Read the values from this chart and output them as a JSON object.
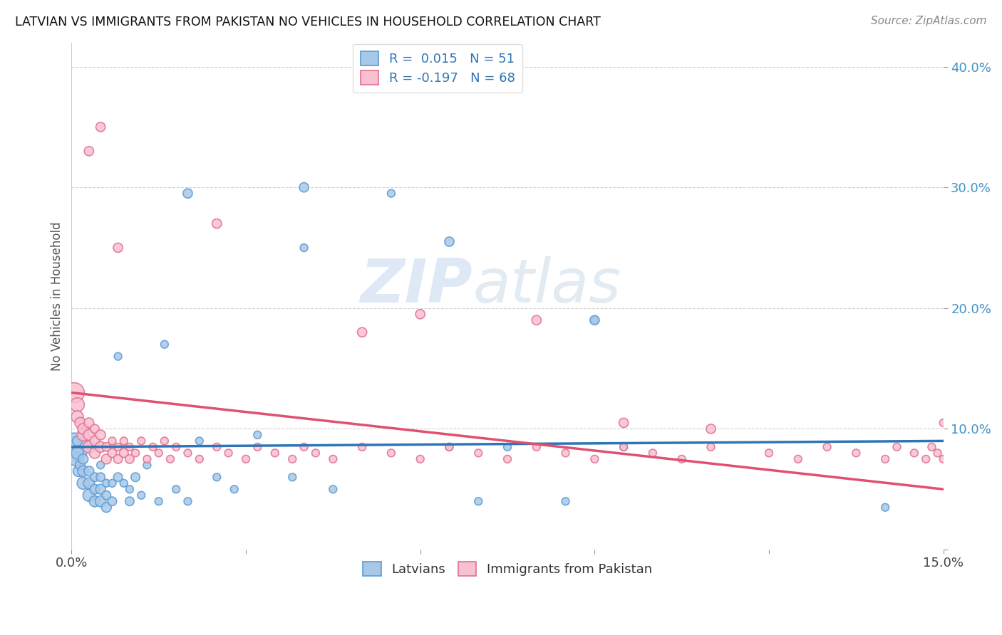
{
  "title": "LATVIAN VS IMMIGRANTS FROM PAKISTAN NO VEHICLES IN HOUSEHOLD CORRELATION CHART",
  "source": "Source: ZipAtlas.com",
  "ylabel": "No Vehicles in Household",
  "xlim": [
    0.0,
    0.15
  ],
  "ylim": [
    0.0,
    0.42
  ],
  "xtick_vals": [
    0.0,
    0.03,
    0.06,
    0.09,
    0.12,
    0.15
  ],
  "xtick_labels": [
    "0.0%",
    "",
    "",
    "",
    "",
    "15.0%"
  ],
  "ytick_vals": [
    0.0,
    0.1,
    0.2,
    0.3,
    0.4
  ],
  "ytick_labels": [
    "",
    "10.0%",
    "20.0%",
    "30.0%",
    "40.0%"
  ],
  "blue_color": "#a8c8e8",
  "blue_edge_color": "#5b9bd5",
  "pink_color": "#f8c0d0",
  "pink_edge_color": "#e07090",
  "blue_line_color": "#2e75b6",
  "pink_line_color": "#e05070",
  "legend_blue_label": "R =  0.015   N = 51",
  "legend_pink_label": "R = -0.197   N = 68",
  "legend_latvians": "Latvians",
  "legend_pakistan": "Immigrants from Pakistan",
  "watermark": "ZIPatlas",
  "R_blue": 0.015,
  "R_pink": -0.197,
  "blue_trend_y0": 0.085,
  "blue_trend_y1": 0.09,
  "pink_trend_y0": 0.13,
  "pink_trend_y1": 0.05,
  "blue_scatter": {
    "x": [
      0.0005,
      0.0008,
      0.001,
      0.001,
      0.0012,
      0.0015,
      0.002,
      0.002,
      0.002,
      0.003,
      0.003,
      0.003,
      0.004,
      0.004,
      0.004,
      0.005,
      0.005,
      0.005,
      0.005,
      0.006,
      0.006,
      0.006,
      0.007,
      0.007,
      0.008,
      0.008,
      0.009,
      0.01,
      0.01,
      0.011,
      0.012,
      0.013,
      0.015,
      0.016,
      0.018,
      0.02,
      0.022,
      0.025,
      0.028,
      0.032,
      0.038,
      0.04,
      0.045,
      0.055,
      0.065,
      0.07,
      0.075,
      0.085,
      0.09,
      0.095,
      0.14
    ],
    "y": [
      0.085,
      0.075,
      0.08,
      0.09,
      0.065,
      0.07,
      0.055,
      0.065,
      0.075,
      0.045,
      0.055,
      0.065,
      0.04,
      0.05,
      0.06,
      0.04,
      0.05,
      0.06,
      0.07,
      0.035,
      0.045,
      0.055,
      0.04,
      0.055,
      0.06,
      0.16,
      0.055,
      0.04,
      0.05,
      0.06,
      0.045,
      0.07,
      0.04,
      0.17,
      0.05,
      0.04,
      0.09,
      0.06,
      0.05,
      0.095,
      0.06,
      0.25,
      0.05,
      0.295,
      0.085,
      0.04,
      0.085,
      0.04,
      0.19,
      0.085,
      0.035
    ],
    "sizes": [
      800,
      200,
      150,
      100,
      120,
      100,
      150,
      120,
      100,
      150,
      120,
      100,
      120,
      100,
      80,
      120,
      100,
      80,
      60,
      100,
      80,
      60,
      80,
      60,
      80,
      60,
      60,
      80,
      60,
      80,
      60,
      60,
      60,
      60,
      60,
      60,
      60,
      60,
      60,
      60,
      60,
      60,
      60,
      60,
      60,
      60,
      60,
      60,
      60,
      60,
      60
    ]
  },
  "pink_scatter": {
    "x": [
      0.0005,
      0.001,
      0.001,
      0.0015,
      0.002,
      0.002,
      0.003,
      0.003,
      0.003,
      0.004,
      0.004,
      0.004,
      0.005,
      0.005,
      0.006,
      0.006,
      0.007,
      0.007,
      0.008,
      0.008,
      0.009,
      0.009,
      0.01,
      0.01,
      0.011,
      0.012,
      0.013,
      0.014,
      0.015,
      0.016,
      0.017,
      0.018,
      0.02,
      0.022,
      0.025,
      0.027,
      0.03,
      0.032,
      0.035,
      0.038,
      0.04,
      0.042,
      0.045,
      0.05,
      0.055,
      0.06,
      0.065,
      0.07,
      0.075,
      0.08,
      0.085,
      0.09,
      0.095,
      0.1,
      0.105,
      0.11,
      0.12,
      0.125,
      0.13,
      0.135,
      0.14,
      0.142,
      0.145,
      0.147,
      0.148,
      0.149,
      0.15,
      0.15
    ],
    "y": [
      0.13,
      0.12,
      0.11,
      0.105,
      0.095,
      0.1,
      0.085,
      0.095,
      0.105,
      0.08,
      0.09,
      0.1,
      0.085,
      0.095,
      0.075,
      0.085,
      0.08,
      0.09,
      0.075,
      0.085,
      0.08,
      0.09,
      0.075,
      0.085,
      0.08,
      0.09,
      0.075,
      0.085,
      0.08,
      0.09,
      0.075,
      0.085,
      0.08,
      0.075,
      0.085,
      0.08,
      0.075,
      0.085,
      0.08,
      0.075,
      0.085,
      0.08,
      0.075,
      0.085,
      0.08,
      0.075,
      0.085,
      0.08,
      0.075,
      0.085,
      0.08,
      0.075,
      0.085,
      0.08,
      0.075,
      0.085,
      0.08,
      0.075,
      0.085,
      0.08,
      0.075,
      0.085,
      0.08,
      0.075,
      0.085,
      0.08,
      0.075,
      0.105
    ],
    "sizes": [
      400,
      200,
      150,
      120,
      150,
      120,
      150,
      120,
      100,
      120,
      100,
      80,
      120,
      100,
      100,
      80,
      80,
      60,
      80,
      60,
      80,
      60,
      80,
      60,
      60,
      60,
      60,
      60,
      60,
      60,
      60,
      60,
      60,
      60,
      60,
      60,
      60,
      60,
      60,
      60,
      60,
      60,
      60,
      60,
      60,
      60,
      60,
      60,
      60,
      60,
      60,
      60,
      60,
      60,
      60,
      60,
      60,
      60,
      60,
      60,
      60,
      60,
      60,
      60,
      60,
      60,
      60,
      60
    ]
  },
  "extra_pink_high": {
    "x": [
      0.005,
      0.025,
      0.003,
      0.05,
      0.008,
      0.06,
      0.08,
      0.095,
      0.11
    ],
    "y": [
      0.35,
      0.27,
      0.33,
      0.18,
      0.25,
      0.195,
      0.19,
      0.105,
      0.1
    ],
    "sizes": [
      60,
      60,
      60,
      60,
      60,
      60,
      60,
      60,
      60
    ]
  },
  "extra_blue_high": {
    "x": [
      0.02,
      0.04,
      0.065,
      0.09
    ],
    "y": [
      0.295,
      0.3,
      0.255,
      0.19
    ],
    "sizes": [
      60,
      60,
      60,
      60
    ]
  }
}
